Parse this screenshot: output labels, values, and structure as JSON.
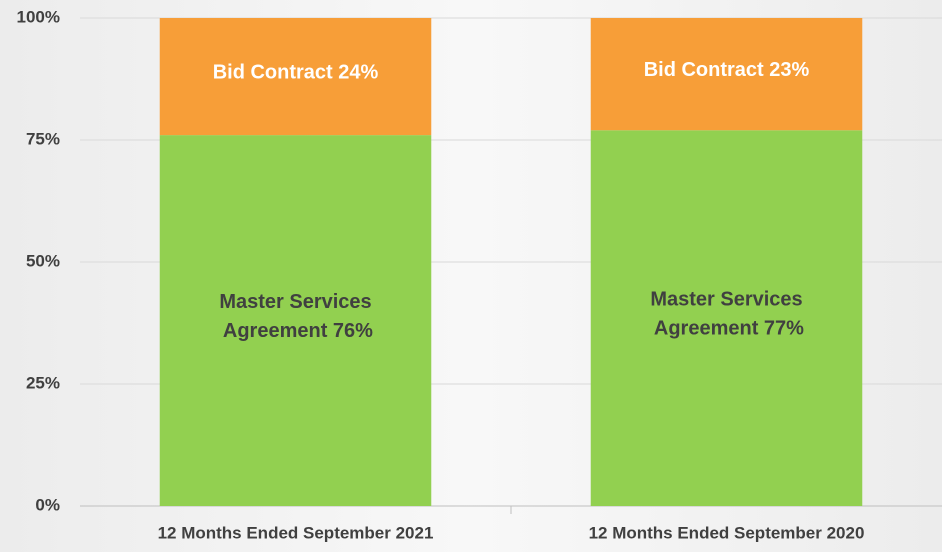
{
  "chart_data": {
    "type": "stacked_bar",
    "categories": [
      "12 Months Ended September 2021",
      "12 Months Ended September 2020"
    ],
    "series": [
      {
        "name": "Master Services Agreement",
        "color": "#92d050",
        "label_color": "#404040",
        "values": [
          76,
          77
        ],
        "value_labels": [
          "Master Services Agreement 76%",
          "Master Services Agreement 77%"
        ]
      },
      {
        "name": "Bid Contract",
        "color": "#f79e38",
        "label_color": "#ffffff",
        "values": [
          24,
          23
        ],
        "value_labels": [
          "Bid Contract 24%",
          "Bid Contract 23%"
        ]
      }
    ],
    "ylim": [
      0,
      100
    ],
    "yticks": [
      {
        "value": 0,
        "label": "0%"
      },
      {
        "value": 25,
        "label": "25%"
      },
      {
        "value": 50,
        "label": "50%"
      },
      {
        "value": 75,
        "label": "75%"
      },
      {
        "value": 100,
        "label": "100%"
      }
    ],
    "grid": true
  }
}
